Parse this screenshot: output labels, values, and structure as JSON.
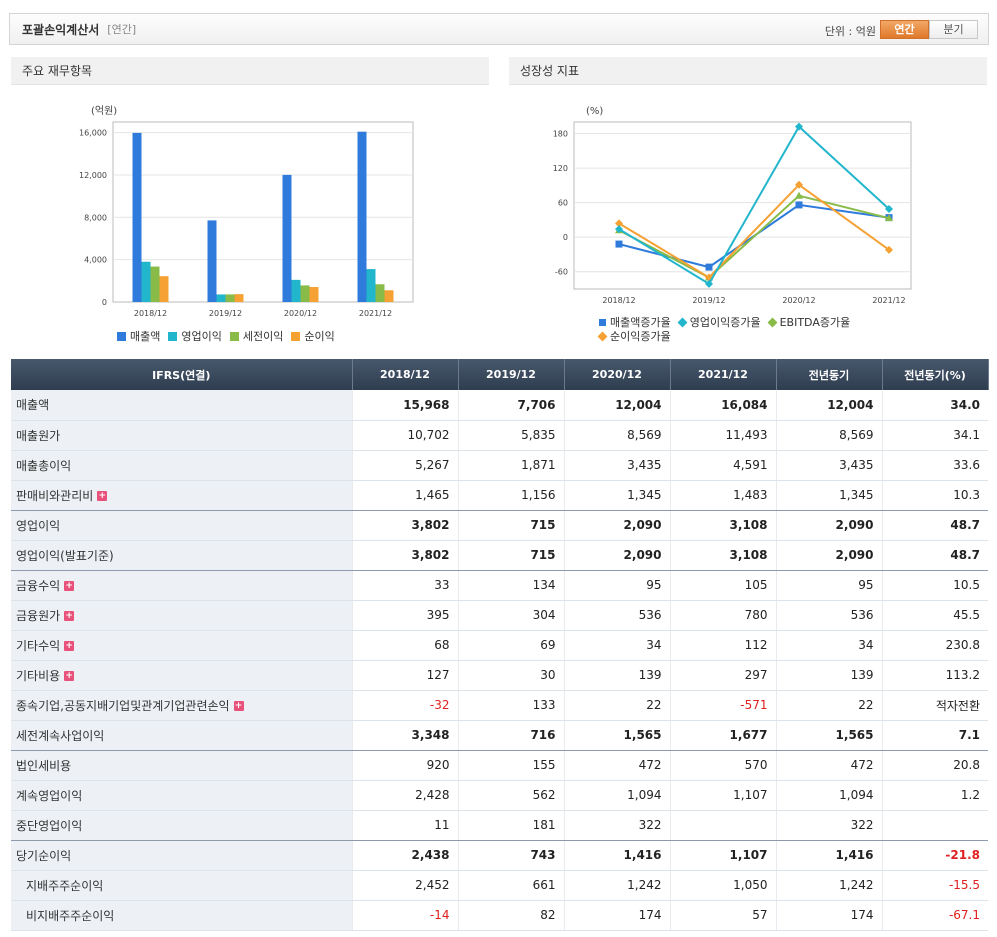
{
  "header": {
    "title": "포괄손익계산서",
    "period_tag": "[연간]",
    "unit_label": "단위 : 억원",
    "toggle": [
      "연간",
      "분기"
    ]
  },
  "panels": {
    "left_title": "주요 재무항목",
    "right_title": "성장성 지표"
  },
  "colors": {
    "revenue": "#2e7bdc",
    "op_income": "#22b6cc",
    "pretax": "#88bb48",
    "net": "#f5a133",
    "header_dark": "#34404f",
    "negative": "#e02020",
    "active_toggle": "#e57f30"
  },
  "chart_data": [
    {
      "type": "bar",
      "ylabel": "(억원)",
      "categories": [
        "2018/12",
        "2019/12",
        "2020/12",
        "2021/12"
      ],
      "ylim": [
        0,
        17000
      ],
      "yticks": [
        0,
        4000,
        8000,
        12000,
        16000
      ],
      "ytick_labels": [
        "0",
        "4,000",
        "8,000",
        "12,000",
        "16,000"
      ],
      "series": [
        {
          "name": "매출액",
          "values": [
            15968,
            7706,
            12004,
            16084
          ]
        },
        {
          "name": "영업이익",
          "values": [
            3802,
            715,
            2090,
            3108
          ]
        },
        {
          "name": "세전이익",
          "values": [
            3348,
            716,
            1565,
            1677
          ]
        },
        {
          "name": "순이익",
          "values": [
            2438,
            743,
            1416,
            1107
          ]
        }
      ],
      "grid": true,
      "legend": "bottom"
    },
    {
      "type": "line",
      "ylabel": "(%)",
      "categories": [
        "2018/12",
        "2019/12",
        "2020/12",
        "2021/12"
      ],
      "ylim": [
        -90,
        200
      ],
      "yticks": [
        -60,
        0,
        60,
        120,
        180
      ],
      "ytick_labels": [
        "-60",
        "0",
        "60",
        "120",
        "180"
      ],
      "series": [
        {
          "name": "매출액증가율",
          "values": [
            -12,
            -52,
            56,
            34
          ]
        },
        {
          "name": "영업이익증가율",
          "values": [
            14,
            -81,
            192,
            49
          ]
        },
        {
          "name": "EBITDA증가율",
          "values": [
            12,
            -70,
            72,
            33
          ]
        },
        {
          "name": "순이익증가율",
          "values": [
            24,
            -70,
            91,
            -22
          ]
        }
      ],
      "grid": true,
      "legend": "bottom"
    }
  ],
  "table": {
    "headers": [
      "IFRS(연결)",
      "2018/12",
      "2019/12",
      "2020/12",
      "2021/12",
      "전년동기",
      "전년동기(%)"
    ],
    "rows": [
      {
        "label": "매출액",
        "values": [
          "15,968",
          "7,706",
          "12,004",
          "16,084",
          "12,004",
          "34.0"
        ],
        "bold": true,
        "plus": false,
        "indent": false
      },
      {
        "label": "매출원가",
        "values": [
          "10,702",
          "5,835",
          "8,569",
          "11,493",
          "8,569",
          "34.1"
        ],
        "bold": false,
        "plus": false,
        "indent": false
      },
      {
        "label": "매출총이익",
        "values": [
          "5,267",
          "1,871",
          "3,435",
          "4,591",
          "3,435",
          "33.6"
        ],
        "bold": false,
        "plus": false,
        "indent": false
      },
      {
        "label": "판매비와관리비",
        "values": [
          "1,465",
          "1,156",
          "1,345",
          "1,483",
          "1,345",
          "10.3"
        ],
        "bold": false,
        "plus": true,
        "indent": false
      },
      {
        "label": "영업이익",
        "values": [
          "3,802",
          "715",
          "2,090",
          "3,108",
          "2,090",
          "48.7"
        ],
        "bold": true,
        "plus": false,
        "indent": false
      },
      {
        "label": "영업이익(발표기준)",
        "values": [
          "3,802",
          "715",
          "2,090",
          "3,108",
          "2,090",
          "48.7"
        ],
        "bold": true,
        "plus": false,
        "indent": false
      },
      {
        "label": "금융수익",
        "values": [
          "33",
          "134",
          "95",
          "105",
          "95",
          "10.5"
        ],
        "bold": false,
        "plus": true,
        "indent": false
      },
      {
        "label": "금융원가",
        "values": [
          "395",
          "304",
          "536",
          "780",
          "536",
          "45.5"
        ],
        "bold": false,
        "plus": true,
        "indent": false
      },
      {
        "label": "기타수익",
        "values": [
          "68",
          "69",
          "34",
          "112",
          "34",
          "230.8"
        ],
        "bold": false,
        "plus": true,
        "indent": false
      },
      {
        "label": "기타비용",
        "values": [
          "127",
          "30",
          "139",
          "297",
          "139",
          "113.2"
        ],
        "bold": false,
        "plus": true,
        "indent": false
      },
      {
        "label": "종속기업,공동지배기업및관계기업관련손익",
        "values": [
          "-32",
          "133",
          "22",
          "-571",
          "22",
          "적자전환"
        ],
        "bold": false,
        "plus": true,
        "indent": false
      },
      {
        "label": "세전계속사업이익",
        "values": [
          "3,348",
          "716",
          "1,565",
          "1,677",
          "1,565",
          "7.1"
        ],
        "bold": true,
        "plus": false,
        "indent": false
      },
      {
        "label": "법인세비용",
        "values": [
          "920",
          "155",
          "472",
          "570",
          "472",
          "20.8"
        ],
        "bold": false,
        "plus": false,
        "indent": false
      },
      {
        "label": "계속영업이익",
        "values": [
          "2,428",
          "562",
          "1,094",
          "1,107",
          "1,094",
          "1.2"
        ],
        "bold": false,
        "plus": false,
        "indent": false
      },
      {
        "label": "중단영업이익",
        "values": [
          "11",
          "181",
          "322",
          "",
          "322",
          ""
        ],
        "bold": false,
        "plus": false,
        "indent": false
      },
      {
        "label": "당기순이익",
        "values": [
          "2,438",
          "743",
          "1,416",
          "1,107",
          "1,416",
          "-21.8"
        ],
        "bold": true,
        "plus": false,
        "indent": false
      },
      {
        "label": "지배주주순이익",
        "values": [
          "2,452",
          "661",
          "1,242",
          "1,050",
          "1,242",
          "-15.5"
        ],
        "bold": false,
        "plus": false,
        "indent": true
      },
      {
        "label": "비지배주주순이익",
        "values": [
          "-14",
          "82",
          "174",
          "57",
          "174",
          "-67.1"
        ],
        "bold": false,
        "plus": false,
        "indent": true
      }
    ]
  }
}
